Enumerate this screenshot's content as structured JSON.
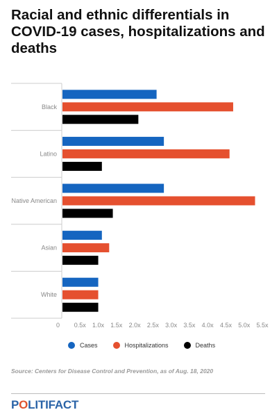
{
  "title": "Racial and ethnic differentials in COVID-19 cases, hospitalizations and deaths",
  "source": "Source: Centers for Disease Control and Prevention, as of Aug. 18, 2020",
  "logo": {
    "part1": "P",
    "part2": "O",
    "part3": "LITI",
    "part4": "FACT"
  },
  "colors": {
    "cases": "#1565c0",
    "hospitalizations": "#e5502f",
    "deaths": "#000000",
    "axis": "#cccccc"
  },
  "chart_data": {
    "type": "bar",
    "orientation": "horizontal",
    "title": "Racial and ethnic differentials in COVID-19 cases, hospitalizations and deaths",
    "xlabel": "",
    "ylabel": "",
    "categories": [
      "Black",
      "Latino",
      "Native American",
      "Asian",
      "White"
    ],
    "series": [
      {
        "name": "Cases",
        "values": [
          2.6,
          2.8,
          2.8,
          1.1,
          1.0
        ]
      },
      {
        "name": "Hospitalizations",
        "values": [
          4.7,
          4.6,
          5.3,
          1.3,
          1.0
        ]
      },
      {
        "name": "Deaths",
        "values": [
          2.1,
          1.1,
          1.4,
          1.0,
          1.0
        ]
      }
    ],
    "xlim": [
      0,
      5.5
    ],
    "xticks": [
      "0",
      "0.5x",
      "1.0x",
      "1.5x",
      "2.0x",
      "2.5x",
      "3.0x",
      "3.5x",
      "4.0x",
      "4.5x",
      "5.0x",
      "5.5x"
    ],
    "grid": false,
    "legend_position": "bottom"
  }
}
